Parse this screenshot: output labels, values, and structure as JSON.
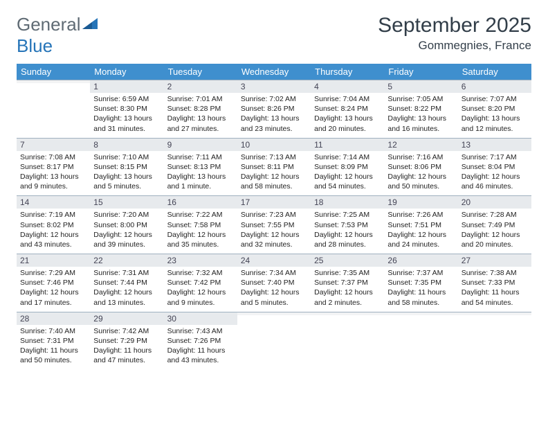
{
  "brand": {
    "part1": "General",
    "part2": "Blue"
  },
  "title": "September 2025",
  "location": "Gommegnies, France",
  "headers": [
    "Sunday",
    "Monday",
    "Tuesday",
    "Wednesday",
    "Thursday",
    "Friday",
    "Saturday"
  ],
  "colors": {
    "header_bg": "#3f8fce",
    "daynum_bg": "#e7eaed",
    "daynum_border": "#9fb0bf",
    "text_dark": "#323e49",
    "brand_gray": "#5f6b74",
    "brand_blue": "#2574b8"
  },
  "weeks": [
    [
      {
        "n": "",
        "lines": []
      },
      {
        "n": "1",
        "lines": [
          "Sunrise: 6:59 AM",
          "Sunset: 8:30 PM",
          "Daylight: 13 hours and 31 minutes."
        ]
      },
      {
        "n": "2",
        "lines": [
          "Sunrise: 7:01 AM",
          "Sunset: 8:28 PM",
          "Daylight: 13 hours and 27 minutes."
        ]
      },
      {
        "n": "3",
        "lines": [
          "Sunrise: 7:02 AM",
          "Sunset: 8:26 PM",
          "Daylight: 13 hours and 23 minutes."
        ]
      },
      {
        "n": "4",
        "lines": [
          "Sunrise: 7:04 AM",
          "Sunset: 8:24 PM",
          "Daylight: 13 hours and 20 minutes."
        ]
      },
      {
        "n": "5",
        "lines": [
          "Sunrise: 7:05 AM",
          "Sunset: 8:22 PM",
          "Daylight: 13 hours and 16 minutes."
        ]
      },
      {
        "n": "6",
        "lines": [
          "Sunrise: 7:07 AM",
          "Sunset: 8:20 PM",
          "Daylight: 13 hours and 12 minutes."
        ]
      }
    ],
    [
      {
        "n": "7",
        "lines": [
          "Sunrise: 7:08 AM",
          "Sunset: 8:17 PM",
          "Daylight: 13 hours and 9 minutes."
        ]
      },
      {
        "n": "8",
        "lines": [
          "Sunrise: 7:10 AM",
          "Sunset: 8:15 PM",
          "Daylight: 13 hours and 5 minutes."
        ]
      },
      {
        "n": "9",
        "lines": [
          "Sunrise: 7:11 AM",
          "Sunset: 8:13 PM",
          "Daylight: 13 hours and 1 minute."
        ]
      },
      {
        "n": "10",
        "lines": [
          "Sunrise: 7:13 AM",
          "Sunset: 8:11 PM",
          "Daylight: 12 hours and 58 minutes."
        ]
      },
      {
        "n": "11",
        "lines": [
          "Sunrise: 7:14 AM",
          "Sunset: 8:09 PM",
          "Daylight: 12 hours and 54 minutes."
        ]
      },
      {
        "n": "12",
        "lines": [
          "Sunrise: 7:16 AM",
          "Sunset: 8:06 PM",
          "Daylight: 12 hours and 50 minutes."
        ]
      },
      {
        "n": "13",
        "lines": [
          "Sunrise: 7:17 AM",
          "Sunset: 8:04 PM",
          "Daylight: 12 hours and 46 minutes."
        ]
      }
    ],
    [
      {
        "n": "14",
        "lines": [
          "Sunrise: 7:19 AM",
          "Sunset: 8:02 PM",
          "Daylight: 12 hours and 43 minutes."
        ]
      },
      {
        "n": "15",
        "lines": [
          "Sunrise: 7:20 AM",
          "Sunset: 8:00 PM",
          "Daylight: 12 hours and 39 minutes."
        ]
      },
      {
        "n": "16",
        "lines": [
          "Sunrise: 7:22 AM",
          "Sunset: 7:58 PM",
          "Daylight: 12 hours and 35 minutes."
        ]
      },
      {
        "n": "17",
        "lines": [
          "Sunrise: 7:23 AM",
          "Sunset: 7:55 PM",
          "Daylight: 12 hours and 32 minutes."
        ]
      },
      {
        "n": "18",
        "lines": [
          "Sunrise: 7:25 AM",
          "Sunset: 7:53 PM",
          "Daylight: 12 hours and 28 minutes."
        ]
      },
      {
        "n": "19",
        "lines": [
          "Sunrise: 7:26 AM",
          "Sunset: 7:51 PM",
          "Daylight: 12 hours and 24 minutes."
        ]
      },
      {
        "n": "20",
        "lines": [
          "Sunrise: 7:28 AM",
          "Sunset: 7:49 PM",
          "Daylight: 12 hours and 20 minutes."
        ]
      }
    ],
    [
      {
        "n": "21",
        "lines": [
          "Sunrise: 7:29 AM",
          "Sunset: 7:46 PM",
          "Daylight: 12 hours and 17 minutes."
        ]
      },
      {
        "n": "22",
        "lines": [
          "Sunrise: 7:31 AM",
          "Sunset: 7:44 PM",
          "Daylight: 12 hours and 13 minutes."
        ]
      },
      {
        "n": "23",
        "lines": [
          "Sunrise: 7:32 AM",
          "Sunset: 7:42 PM",
          "Daylight: 12 hours and 9 minutes."
        ]
      },
      {
        "n": "24",
        "lines": [
          "Sunrise: 7:34 AM",
          "Sunset: 7:40 PM",
          "Daylight: 12 hours and 5 minutes."
        ]
      },
      {
        "n": "25",
        "lines": [
          "Sunrise: 7:35 AM",
          "Sunset: 7:37 PM",
          "Daylight: 12 hours and 2 minutes."
        ]
      },
      {
        "n": "26",
        "lines": [
          "Sunrise: 7:37 AM",
          "Sunset: 7:35 PM",
          "Daylight: 11 hours and 58 minutes."
        ]
      },
      {
        "n": "27",
        "lines": [
          "Sunrise: 7:38 AM",
          "Sunset: 7:33 PM",
          "Daylight: 11 hours and 54 minutes."
        ]
      }
    ],
    [
      {
        "n": "28",
        "lines": [
          "Sunrise: 7:40 AM",
          "Sunset: 7:31 PM",
          "Daylight: 11 hours and 50 minutes."
        ]
      },
      {
        "n": "29",
        "lines": [
          "Sunrise: 7:42 AM",
          "Sunset: 7:29 PM",
          "Daylight: 11 hours and 47 minutes."
        ]
      },
      {
        "n": "30",
        "lines": [
          "Sunrise: 7:43 AM",
          "Sunset: 7:26 PM",
          "Daylight: 11 hours and 43 minutes."
        ]
      },
      {
        "n": "",
        "lines": []
      },
      {
        "n": "",
        "lines": []
      },
      {
        "n": "",
        "lines": []
      },
      {
        "n": "",
        "lines": []
      }
    ]
  ]
}
